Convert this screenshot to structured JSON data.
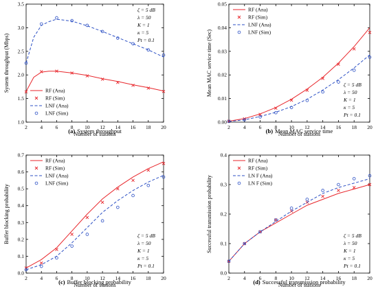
{
  "colors": {
    "rf": "#e8262b",
    "lnf": "#2b4fc4",
    "axis": "#000000"
  },
  "chart_data": [
    {
      "type": "line",
      "caption_letter": "(a)",
      "caption_text": "System throughput",
      "xlabel": "Number of stations",
      "ylabel": "System throughput (Mbps)",
      "xlim": [
        2,
        20
      ],
      "ylim": [
        1.0,
        3.5
      ],
      "xticks": [
        "2",
        "4",
        "6",
        "8",
        "10",
        "12",
        "14",
        "16",
        "18",
        "20"
      ],
      "yticks": [
        "1.0",
        "1.5",
        "2.0",
        "2.5",
        "3.0",
        "3.5"
      ],
      "x": [
        2,
        4,
        6,
        8,
        10,
        12,
        14,
        16,
        18,
        20
      ],
      "legend": {
        "position": "bottom-left",
        "entries": [
          "RF (Ana)",
          "RF (Sim)",
          "LNF (Ana)",
          "LNF (Sim)"
        ]
      },
      "params": {
        "position": "top-right",
        "lines": [
          "ζ = 5 dB",
          "λ = 50",
          "K = 1",
          "κ = 5",
          "Pt = 0.1"
        ]
      },
      "series": [
        {
          "name": "RF (Ana)",
          "style": "solid",
          "color": "rf",
          "x": [
            2,
            3,
            4,
            5,
            6,
            8,
            10,
            12,
            14,
            16,
            18,
            20
          ],
          "values": [
            1.65,
            1.95,
            2.06,
            2.08,
            2.08,
            2.04,
            1.99,
            1.92,
            1.86,
            1.79,
            1.73,
            1.66
          ]
        },
        {
          "name": "RF (Sim)",
          "style": "x",
          "color": "rf",
          "values": [
            1.64,
            2.07,
            2.08,
            2.04,
            1.98,
            1.91,
            1.84,
            1.78,
            1.72,
            1.65
          ]
        },
        {
          "name": "LNF (Ana)",
          "style": "dashed",
          "color": "lnf",
          "x": [
            2,
            3,
            4,
            5,
            6,
            8,
            10,
            12,
            14,
            16,
            18,
            20
          ],
          "values": [
            2.25,
            2.8,
            3.05,
            3.13,
            3.18,
            3.14,
            3.04,
            2.92,
            2.79,
            2.66,
            2.53,
            2.38
          ]
        },
        {
          "name": "LNF (Sim)",
          "style": "circle",
          "color": "lnf",
          "values": [
            2.25,
            3.08,
            3.21,
            3.15,
            3.05,
            2.92,
            2.78,
            2.66,
            2.53,
            2.42
          ]
        }
      ]
    },
    {
      "type": "line",
      "caption_letter": "(b)",
      "caption_text": "Mean MAC service time",
      "xlabel": "Number of stations",
      "ylabel": "Mean MAC service time (Sec)",
      "xlim": [
        2,
        20
      ],
      "ylim": [
        0,
        0.05
      ],
      "xticks": [
        "2",
        "4",
        "6",
        "8",
        "10",
        "12",
        "14",
        "16",
        "18",
        "20"
      ],
      "yticks": [
        "0.00",
        "0.01",
        "0.02",
        "0.03",
        "0.04",
        "0.05"
      ],
      "x": [
        2,
        4,
        6,
        8,
        10,
        12,
        14,
        16,
        18,
        20
      ],
      "legend": {
        "position": "top-left",
        "entries": [
          "RF (Ana)",
          "RF (Sim)",
          "LNF (Ana)",
          "LNF (Sim)"
        ]
      },
      "params": {
        "position": "bottom-right",
        "lines": [
          "ζ = 5 dB",
          "λ = 50",
          "K = 1",
          "κ = 5",
          "Pt = 0.1"
        ]
      },
      "series": [
        {
          "name": "RF (Ana)",
          "style": "solid",
          "color": "rf",
          "values": [
            0.0004,
            0.0015,
            0.0035,
            0.0062,
            0.0097,
            0.014,
            0.019,
            0.025,
            0.032,
            0.04
          ]
        },
        {
          "name": "RF (Sim)",
          "style": "x",
          "color": "rf",
          "values": [
            0.0004,
            0.0014,
            0.0033,
            0.0059,
            0.0093,
            0.0135,
            0.0185,
            0.0245,
            0.031,
            0.038
          ]
        },
        {
          "name": "LNF (Ana)",
          "style": "dashed",
          "color": "lnf",
          "values": [
            0.0003,
            0.001,
            0.0024,
            0.0042,
            0.0066,
            0.0097,
            0.0136,
            0.018,
            0.023,
            0.0285
          ]
        },
        {
          "name": "LNF (Sim)",
          "style": "circle",
          "color": "lnf",
          "values": [
            0.0003,
            0.001,
            0.0022,
            0.004,
            0.0062,
            0.0092,
            0.0128,
            0.017,
            0.022,
            0.0275
          ]
        }
      ]
    },
    {
      "type": "line",
      "caption_letter": "(c)",
      "caption_text": "Buffer blocking probability",
      "xlabel": "Number of stations",
      "ylabel": "Buffer blocking probability",
      "xlim": [
        2,
        20
      ],
      "ylim": [
        0,
        0.7
      ],
      "xticks": [
        "2",
        "4",
        "6",
        "8",
        "10",
        "12",
        "14",
        "16",
        "18",
        "20"
      ],
      "yticks": [
        "0.0",
        "0.1",
        "0.2",
        "0.3",
        "0.4",
        "0.5",
        "0.6",
        "0.7"
      ],
      "x": [
        2,
        4,
        6,
        8,
        10,
        12,
        14,
        16,
        18,
        20
      ],
      "legend": {
        "position": "top-left",
        "entries": [
          "RF (Ana)",
          "RF (Sim)",
          "LNF (Ana)",
          "LNF (Sim)"
        ]
      },
      "params": {
        "position": "bottom-right",
        "lines": [
          "ζ = 5 dB",
          "λ = 50",
          "K = 1",
          "κ = 5",
          "Pt = 0.1"
        ]
      },
      "series": [
        {
          "name": "RF (Ana)",
          "style": "solid",
          "color": "rf",
          "values": [
            0.03,
            0.08,
            0.15,
            0.25,
            0.35,
            0.44,
            0.51,
            0.57,
            0.62,
            0.66
          ]
        },
        {
          "name": "RF (Sim)",
          "style": "x",
          "color": "rf",
          "values": [
            0.03,
            0.06,
            0.14,
            0.23,
            0.33,
            0.42,
            0.5,
            0.55,
            0.61,
            0.65
          ]
        },
        {
          "name": "LNF (Ana)",
          "style": "dashed",
          "color": "lnf",
          "values": [
            0.02,
            0.05,
            0.1,
            0.18,
            0.27,
            0.36,
            0.43,
            0.49,
            0.54,
            0.58
          ]
        },
        {
          "name": "LNF (Sim)",
          "style": "circle",
          "color": "lnf",
          "values": [
            0.02,
            0.04,
            0.09,
            0.16,
            0.23,
            0.31,
            0.39,
            0.46,
            0.52,
            0.57
          ]
        }
      ]
    },
    {
      "type": "line",
      "caption_letter": "(d)",
      "caption_text": "Successful transmission probability",
      "xlabel": "Number of stations",
      "ylabel": "Successful transmission probability",
      "xlim": [
        2,
        20
      ],
      "ylim": [
        0,
        0.4
      ],
      "xticks": [
        "2",
        "4",
        "6",
        "8",
        "10",
        "12",
        "14",
        "16",
        "18",
        "20"
      ],
      "yticks": [
        "0.0",
        "0.1",
        "0.2",
        "0.3",
        "0.4"
      ],
      "x": [
        2,
        4,
        6,
        8,
        10,
        12,
        14,
        16,
        18,
        20
      ],
      "legend": {
        "position": "top-left",
        "entries": [
          "RF (Ana)",
          "RF (Sim)",
          "LN F (Ana)",
          "LN F (Sim)"
        ]
      },
      "params": {
        "position": "bottom-right",
        "lines": [
          "ζ = 5 dB",
          "λ = 50",
          "K = 1",
          "κ = 5",
          "Pt = 0.1"
        ]
      },
      "series": [
        {
          "name": "RF (Ana)",
          "style": "solid",
          "color": "rf",
          "values": [
            0.04,
            0.1,
            0.14,
            0.17,
            0.2,
            0.23,
            0.25,
            0.27,
            0.285,
            0.3
          ]
        },
        {
          "name": "RF (Sim)",
          "style": "x",
          "color": "rf",
          "values": [
            0.04,
            0.1,
            0.14,
            0.18,
            0.21,
            0.24,
            0.26,
            0.28,
            0.29,
            0.3
          ]
        },
        {
          "name": "LN F (Ana)",
          "style": "dashed",
          "color": "lnf",
          "values": [
            0.04,
            0.1,
            0.14,
            0.175,
            0.21,
            0.24,
            0.27,
            0.29,
            0.305,
            0.32
          ]
        },
        {
          "name": "LN F (Sim)",
          "style": "circle",
          "color": "lnf",
          "values": [
            0.04,
            0.1,
            0.14,
            0.18,
            0.22,
            0.25,
            0.28,
            0.3,
            0.32,
            0.33
          ]
        }
      ]
    }
  ]
}
